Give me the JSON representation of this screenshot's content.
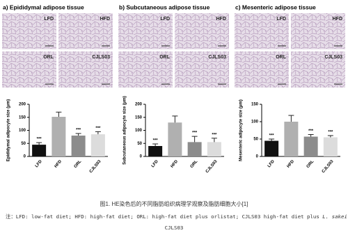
{
  "panels": [
    {
      "title": "a) Epididymal adipose tissue",
      "image_labels": [
        "LFD",
        "HFD",
        "ORL",
        "CJLS03"
      ]
    },
    {
      "title": "b) Subcutaneous adipose tissue",
      "image_labels": [
        "LFD",
        "HFD",
        "ORL",
        "CJLS03"
      ]
    },
    {
      "title": "c) Mesenteric adipose tissue",
      "image_labels": [
        "LFD",
        "HFD",
        "ORL",
        "CJLS03"
      ]
    }
  ],
  "chart_data": [
    {
      "type": "bar",
      "ylabel": "Epididymal adipocyte size (μm)",
      "categories": [
        "LFD",
        "HFD",
        "ORL",
        "CJLS03"
      ],
      "values": [
        45,
        152,
        80,
        85
      ],
      "errors": [
        8,
        18,
        8,
        10
      ],
      "annotations": [
        "***",
        null,
        "***",
        "***"
      ],
      "colors": [
        "#111111",
        "#b0b0b0",
        "#8c8c8c",
        "#dcdcdc"
      ],
      "ylim": [
        0,
        200
      ],
      "yticks": [
        0,
        50,
        100,
        150,
        200
      ]
    },
    {
      "type": "bar",
      "ylabel": "Subcutaneous adipocyte size (μm)",
      "categories": [
        "LFD",
        "HFD",
        "ORL",
        "CJLS03"
      ],
      "values": [
        40,
        130,
        55,
        55
      ],
      "errors": [
        8,
        25,
        22,
        15
      ],
      "annotations": [
        "***",
        null,
        "***",
        "***"
      ],
      "colors": [
        "#111111",
        "#b0b0b0",
        "#8c8c8c",
        "#dcdcdc"
      ],
      "ylim": [
        0,
        200
      ],
      "yticks": [
        0,
        50,
        100,
        150,
        200
      ]
    },
    {
      "type": "bar",
      "ylabel": "Mesenteric adipocyte size (μm)",
      "categories": [
        "LFD",
        "HFD",
        "ORL",
        "CJLS03"
      ],
      "values": [
        45,
        100,
        57,
        55
      ],
      "errors": [
        5,
        18,
        6,
        5
      ],
      "annotations": [
        "***",
        null,
        "***",
        "***"
      ],
      "colors": [
        "#111111",
        "#b0b0b0",
        "#8c8c8c",
        "#dcdcdc"
      ],
      "ylim": [
        0,
        150
      ],
      "yticks": [
        0,
        50,
        100,
        150
      ]
    }
  ],
  "caption": "图1. HE染色后的不同脂肪组织病理学观察及脂肪细胞大小[1]",
  "note": {
    "prefix": "注：LFD: low-fat diet; HFD: high-fat diet; ORL: high-fat diet plus orlistat; CJLS03 high-fat diet plus ",
    "species": "L. sakei",
    "strain": "CJLS03"
  }
}
